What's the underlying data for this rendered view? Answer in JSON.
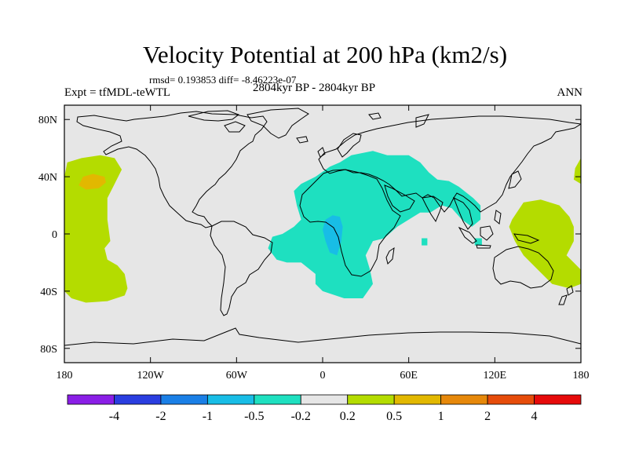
{
  "title": "Velocity Potential at 200 hPa (km2/s)",
  "stats": "rmsd= 0.193853 diff= -8.46223e-07",
  "experiment": "Expt = tfMDL-teWTL",
  "period": "2804kyr BP - 2804kyr BP",
  "season": "ANN",
  "map": {
    "projection": "cylindrical-equidistant",
    "lon_range": [
      -180,
      180
    ],
    "lat_range": [
      -90,
      90
    ],
    "background_color": "#e6e6e6",
    "coastline_color": "#000000"
  },
  "axes": {
    "x_ticks": [
      {
        "lon": -180,
        "label": "180"
      },
      {
        "lon": -120,
        "label": "120W"
      },
      {
        "lon": -60,
        "label": "60W"
      },
      {
        "lon": 0,
        "label": "0"
      },
      {
        "lon": 60,
        "label": "60E"
      },
      {
        "lon": 120,
        "label": "120E"
      },
      {
        "lon": 180,
        "label": "180"
      }
    ],
    "y_ticks": [
      {
        "lat": 80,
        "label": "80N"
      },
      {
        "lat": 40,
        "label": "40N"
      },
      {
        "lat": 0,
        "label": "0"
      },
      {
        "lat": -40,
        "label": "40S"
      },
      {
        "lat": -80,
        "label": "80S"
      }
    ]
  },
  "colorbar": {
    "colors": [
      "#8a1ee6",
      "#2a3ee0",
      "#1a7fe6",
      "#18bde6",
      "#1ee0c0",
      "#e6e6e6",
      "#b4dc00",
      "#e2b800",
      "#e6880a",
      "#e64c0a",
      "#e60a0a"
    ],
    "labels": [
      "-4",
      "-2",
      "-1",
      "-0.5",
      "-0.2",
      "0.2",
      "0.5",
      "1",
      "2",
      "4"
    ]
  },
  "chart_data": {
    "type": "heatmap",
    "variable": "Velocity Potential at 200 hPa",
    "units": "km2/s",
    "levels": [
      -4,
      -2,
      -1,
      -0.5,
      -0.2,
      0.2,
      0.5,
      1,
      2,
      4
    ],
    "features": [
      {
        "name": "north-pacific-positive",
        "class_range": [
          0.2,
          0.5
        ],
        "color": "#b4dc00",
        "polygon": [
          [
            -180,
            40
          ],
          [
            -178,
            50
          ],
          [
            -168,
            53
          ],
          [
            -155,
            55
          ],
          [
            -145,
            53
          ],
          [
            -140,
            45
          ],
          [
            -145,
            35
          ],
          [
            -150,
            25
          ],
          [
            -150,
            10
          ],
          [
            -148,
            -5
          ],
          [
            -152,
            -10
          ],
          [
            -150,
            -18
          ],
          [
            -143,
            -22
          ],
          [
            -138,
            -28
          ],
          [
            -136,
            -38
          ],
          [
            -138,
            -43
          ],
          [
            -150,
            -47
          ],
          [
            -165,
            -48
          ],
          [
            -175,
            -45
          ],
          [
            -180,
            -40
          ]
        ]
      },
      {
        "name": "north-pacific-max",
        "class_range": [
          0.5,
          1
        ],
        "color": "#e2b800",
        "polygon": [
          [
            -170,
            34
          ],
          [
            -167,
            40
          ],
          [
            -160,
            42
          ],
          [
            -152,
            40
          ],
          [
            -151,
            36
          ],
          [
            -156,
            32
          ],
          [
            -165,
            31
          ]
        ]
      },
      {
        "name": "west-pacific-positive",
        "class_range": [
          0.2,
          0.5
        ],
        "color": "#b4dc00",
        "polygon": [
          [
            132,
            10
          ],
          [
            140,
            22
          ],
          [
            152,
            24
          ],
          [
            165,
            20
          ],
          [
            172,
            12
          ],
          [
            175,
            5
          ],
          [
            175,
            -5
          ],
          [
            170,
            -15
          ],
          [
            180,
            -25
          ],
          [
            180,
            -35
          ],
          [
            172,
            -38
          ],
          [
            160,
            -35
          ],
          [
            150,
            -25
          ],
          [
            140,
            -15
          ],
          [
            134,
            -5
          ],
          [
            130,
            5
          ]
        ]
      },
      {
        "name": "dateline-positive-east-edge",
        "class_range": [
          0.2,
          0.5
        ],
        "color": "#b4dc00",
        "polygon": [
          [
            180,
            53
          ],
          [
            176,
            46
          ],
          [
            175,
            38
          ],
          [
            180,
            35
          ]
        ]
      },
      {
        "name": "africa-indian-negative",
        "class_range": [
          -0.5,
          -0.2
        ],
        "color": "#1ee0c0",
        "polygon": [
          [
            -20,
            30
          ],
          [
            -15,
            35
          ],
          [
            -5,
            40
          ],
          [
            5,
            47
          ],
          [
            12,
            50
          ],
          [
            20,
            55
          ],
          [
            35,
            58
          ],
          [
            45,
            55
          ],
          [
            50,
            55
          ],
          [
            60,
            55
          ],
          [
            68,
            50
          ],
          [
            74,
            43
          ],
          [
            80,
            38
          ],
          [
            88,
            37
          ],
          [
            95,
            33
          ],
          [
            105,
            25
          ],
          [
            110,
            20
          ],
          [
            110,
            10
          ],
          [
            104,
            5
          ],
          [
            97,
            10
          ],
          [
            90,
            18
          ],
          [
            83,
            20
          ],
          [
            75,
            15
          ],
          [
            68,
            15
          ],
          [
            60,
            10
          ],
          [
            52,
            5
          ],
          [
            43,
            -3
          ],
          [
            35,
            -5
          ],
          [
            30,
            -15
          ],
          [
            33,
            -25
          ],
          [
            35,
            -35
          ],
          [
            28,
            -45
          ],
          [
            15,
            -45
          ],
          [
            0,
            -40
          ],
          [
            -5,
            -35
          ],
          [
            -5,
            -28
          ],
          [
            -15,
            -20
          ],
          [
            -25,
            -20
          ],
          [
            -32,
            -18
          ],
          [
            -38,
            -10
          ],
          [
            -35,
            -2
          ],
          [
            -28,
            0
          ],
          [
            -20,
            5
          ],
          [
            -15,
            10
          ],
          [
            -18,
            20
          ]
        ]
      },
      {
        "name": "central-africa-min",
        "class_range": [
          -1,
          -0.5
        ],
        "color": "#18bde6",
        "polygon": [
          [
            2,
            10
          ],
          [
            7,
            13
          ],
          [
            12,
            12
          ],
          [
            14,
            5
          ],
          [
            13,
            -5
          ],
          [
            10,
            -15
          ],
          [
            5,
            -13
          ],
          [
            2,
            -5
          ],
          [
            0,
            3
          ]
        ]
      },
      {
        "name": "indian-ocean-patch",
        "class_range": [
          -0.5,
          -0.2
        ],
        "color": "#1ee0c0",
        "polygon": [
          [
            69,
            -3
          ],
          [
            73,
            -3
          ],
          [
            73,
            -8
          ],
          [
            69,
            -8
          ]
        ]
      },
      {
        "name": "indonesia-patch",
        "class_range": [
          -0.5,
          -0.2
        ],
        "color": "#1ee0c0",
        "polygon": [
          [
            106,
            -3
          ],
          [
            111,
            -3
          ],
          [
            111,
            -8
          ],
          [
            106,
            -8
          ]
        ]
      }
    ]
  }
}
